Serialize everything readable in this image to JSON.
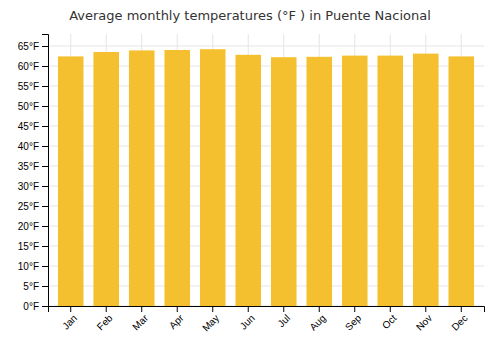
{
  "chart_data": {
    "type": "bar",
    "title": "Average monthly temperatures (°F ) in Puente Nacional",
    "categories": [
      "Jan",
      "Feb",
      "Mar",
      "Apr",
      "May",
      "Jun",
      "Jul",
      "Aug",
      "Sep",
      "Oct",
      "Nov",
      "Dec"
    ],
    "values": [
      62.4,
      63.5,
      63.9,
      64.0,
      64.2,
      62.8,
      62.2,
      62.3,
      62.6,
      62.6,
      63.1,
      62.4
    ],
    "color": "#F5C030",
    "ylim": [
      0,
      68
    ],
    "yticks": [
      {
        "value": 0,
        "label": "0°F"
      },
      {
        "value": 5,
        "label": "5°F"
      },
      {
        "value": 10,
        "label": "10°F"
      },
      {
        "value": 15,
        "label": "15°F"
      },
      {
        "value": 20,
        "label": "20°F"
      },
      {
        "value": 25,
        "label": "25°F"
      },
      {
        "value": 30,
        "label": "30°F"
      },
      {
        "value": 35,
        "label": "35°F"
      },
      {
        "value": 40,
        "label": "40°F"
      },
      {
        "value": 45,
        "label": "45°F"
      },
      {
        "value": 50,
        "label": "50°F"
      },
      {
        "value": 55,
        "label": "55°F"
      },
      {
        "value": 60,
        "label": "60°F"
      },
      {
        "value": 65,
        "label": "65°F"
      }
    ],
    "grid": true
  }
}
